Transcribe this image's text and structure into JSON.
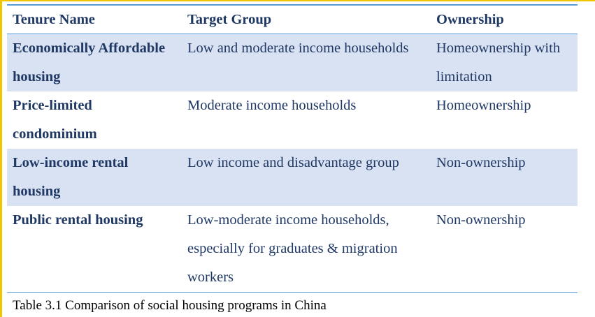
{
  "table": {
    "headers": [
      "Tenure Name",
      "Target Group",
      "Ownership"
    ],
    "rows": [
      {
        "tenure_name": "Economically Affordable housing",
        "target_group": "Low and moderate income households",
        "ownership": "Homeownership with limitation"
      },
      {
        "tenure_name": "Price-limited condominium",
        "target_group": "Moderate income households",
        "ownership": "Homeownership"
      },
      {
        "tenure_name": "Low-income rental housing",
        "target_group": "Low income and disadvantage group",
        "ownership": "Non-ownership"
      },
      {
        "tenure_name": "Public rental housing",
        "target_group": "Low-moderate income households, especially for graduates & migration workers",
        "ownership": "Non-ownership"
      }
    ]
  },
  "caption": "Table 3.1 Comparison of social housing programs in China",
  "colors": {
    "text": "#1f3864",
    "band": "#d9e2f3",
    "rule": "#5b9bd5",
    "caption": "#000000"
  }
}
